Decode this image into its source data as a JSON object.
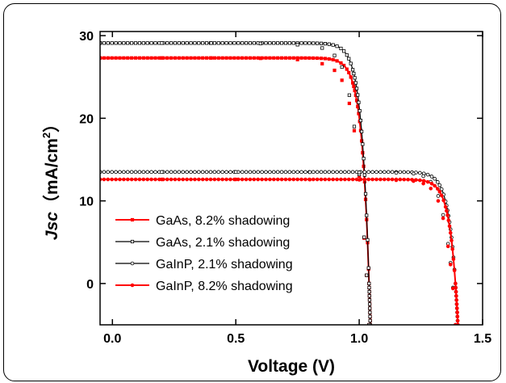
{
  "chart_data": {
    "type": "line",
    "xlabel": "Voltage (V)",
    "ylabel_main": "Jsc",
    "ylabel_unit": "（mA/cm",
    "ylabel_sup": "2",
    "ylabel_close": "）",
    "xlim": [
      -0.05,
      1.5
    ],
    "ylim": [
      -5,
      30.5
    ],
    "xticks": [
      0.0,
      0.5,
      1.0,
      1.5
    ],
    "xtick_labels": [
      "0.0",
      "0.5",
      "1.0",
      "1.5"
    ],
    "yticks": [
      0,
      10,
      20,
      30
    ],
    "ytick_labels": [
      "0",
      "10",
      "20",
      "30"
    ],
    "grid": false,
    "legend_position": "lower-left",
    "series": [
      {
        "name": "GaAs, 8.2% shadowing",
        "color": "#ff0000",
        "marker": "filled-square",
        "jsc": 27.3,
        "voc": 1.04,
        "x": [
          -0.05,
          0.2,
          0.4,
          0.6,
          0.75,
          0.85,
          0.9,
          0.93,
          0.96,
          0.98,
          1.0,
          1.02,
          1.03,
          1.04
        ],
        "y": [
          27.3,
          27.3,
          27.3,
          27.25,
          27.1,
          26.6,
          25.8,
          24.6,
          21.8,
          18.5,
          13.0,
          5.5,
          1.0,
          -5.0
        ]
      },
      {
        "name": "GaAs, 2.1% shadowing",
        "color": "#000000",
        "marker": "open-square",
        "jsc": 29.1,
        "voc": 1.04,
        "x": [
          -0.05,
          0.2,
          0.4,
          0.6,
          0.75,
          0.85,
          0.9,
          0.93,
          0.96,
          0.98,
          1.0,
          1.02,
          1.03,
          1.04
        ],
        "y": [
          29.1,
          29.1,
          29.1,
          29.05,
          28.9,
          28.5,
          27.6,
          26.2,
          22.8,
          19.0,
          13.2,
          5.6,
          1.0,
          -5.0
        ]
      },
      {
        "name": "GaInP, 2.1% shadowing",
        "color": "#000000",
        "marker": "open-circle",
        "jsc": 13.5,
        "voc": 1.39,
        "x": [
          -0.05,
          0.2,
          0.5,
          0.8,
          1.0,
          1.15,
          1.22,
          1.26,
          1.29,
          1.32,
          1.34,
          1.36,
          1.37,
          1.38,
          1.39
        ],
        "y": [
          13.5,
          13.5,
          13.5,
          13.48,
          13.45,
          13.4,
          13.3,
          13.0,
          12.3,
          10.6,
          8.3,
          4.8,
          2.5,
          -0.5,
          -5.0
        ]
      },
      {
        "name": "GaInP, 8.2% shadowing",
        "color": "#ff0000",
        "marker": "filled-circle",
        "jsc": 12.6,
        "voc": 1.39,
        "x": [
          -0.05,
          0.2,
          0.5,
          0.8,
          1.0,
          1.15,
          1.22,
          1.26,
          1.29,
          1.32,
          1.34,
          1.36,
          1.37,
          1.38,
          1.39
        ],
        "y": [
          12.6,
          12.6,
          12.6,
          12.58,
          12.55,
          12.5,
          12.4,
          12.1,
          11.5,
          10.0,
          7.9,
          4.5,
          2.3,
          -0.6,
          -5.0
        ]
      }
    ]
  }
}
